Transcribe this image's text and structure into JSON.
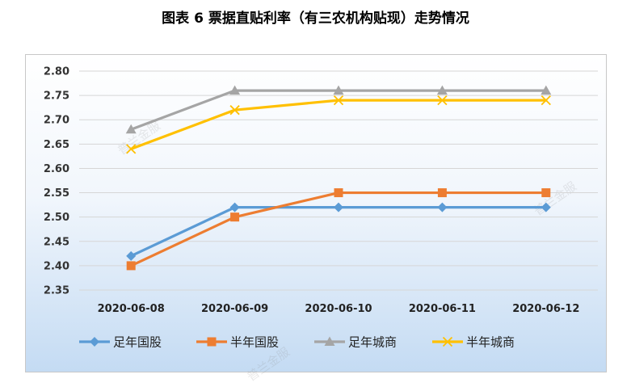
{
  "title": "图表 6  票据直贴利率（有三农机构贴现）走势情况",
  "watermark": "普兰金服",
  "chart_data": {
    "type": "line",
    "title": "图表 6  票据直贴利率（有三农机构贴现）走势情况",
    "xlabel": "",
    "ylabel": "",
    "categories": [
      "2020-06-08",
      "2020-06-09",
      "2020-06-10",
      "2020-06-11",
      "2020-06-12"
    ],
    "ylim": [
      2.35,
      2.8
    ],
    "yticks": [
      "2.80",
      "2.75",
      "2.70",
      "2.65",
      "2.60",
      "2.55",
      "2.50",
      "2.45",
      "2.40",
      "2.35"
    ],
    "grid": true,
    "legend_position": "bottom",
    "series": [
      {
        "name": "足年国股",
        "values": [
          2.42,
          2.52,
          2.52,
          2.52,
          2.52
        ],
        "color": "#5b9bd5",
        "marker": "diamond"
      },
      {
        "name": "半年国股",
        "values": [
          2.4,
          2.5,
          2.55,
          2.55,
          2.55
        ],
        "color": "#ed7d31",
        "marker": "square"
      },
      {
        "name": "足年城商",
        "values": [
          2.68,
          2.76,
          2.76,
          2.76,
          2.76
        ],
        "color": "#a5a5a5",
        "marker": "triangle"
      },
      {
        "name": "半年城商",
        "values": [
          2.64,
          2.72,
          2.74,
          2.74,
          2.74
        ],
        "color": "#ffc000",
        "marker": "x"
      }
    ]
  }
}
